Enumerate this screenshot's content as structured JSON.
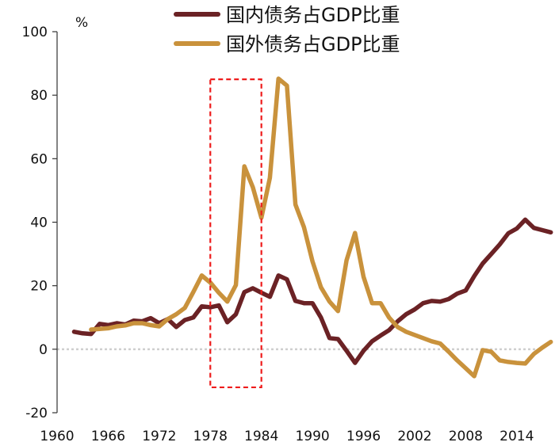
{
  "chart_data": {
    "type": "line",
    "title": "",
    "xlabel": "",
    "ylabel": "",
    "y_unit": "%",
    "xlim": [
      1960,
      2017
    ],
    "ylim": [
      -20,
      100
    ],
    "x_ticks": [
      1960,
      1966,
      1972,
      1978,
      1984,
      1990,
      1996,
      2002,
      2008,
      2014
    ],
    "y_ticks": [
      -20,
      0,
      20,
      40,
      60,
      80,
      100
    ],
    "zero_line": {
      "style": "dotted",
      "color": "#cfcfcf"
    },
    "legend": {
      "placement": "top-right"
    },
    "highlight_box": {
      "x_from": 1978,
      "x_to": 1984,
      "y_from": -12,
      "y_to": 85,
      "color": "#ee1c1c",
      "style": "dashed"
    },
    "series": [
      {
        "name": "国内债务占GDP比重",
        "color": "#6b2225",
        "points": [
          [
            1962,
            5.5
          ],
          [
            1963,
            5
          ],
          [
            1964,
            4.8
          ],
          [
            1965,
            8
          ],
          [
            1966,
            7.6
          ],
          [
            1967,
            8.2
          ],
          [
            1968,
            7.8
          ],
          [
            1969,
            9
          ],
          [
            1970,
            8.8
          ],
          [
            1971,
            9.8
          ],
          [
            1972,
            8.2
          ],
          [
            1973,
            9.5
          ],
          [
            1974,
            7
          ],
          [
            1975,
            9.2
          ],
          [
            1976,
            10
          ],
          [
            1977,
            13.5
          ],
          [
            1978,
            13.2
          ],
          [
            1979,
            13.8
          ],
          [
            1980,
            8.5
          ],
          [
            1981,
            11
          ],
          [
            1982,
            18
          ],
          [
            1983,
            19.2
          ],
          [
            1984,
            17.8
          ],
          [
            1985,
            16.5
          ],
          [
            1986,
            23.2
          ],
          [
            1987,
            22
          ],
          [
            1988,
            15.2
          ],
          [
            1989,
            14.5
          ],
          [
            1990,
            14.5
          ],
          [
            1991,
            10
          ],
          [
            1992,
            3.5
          ],
          [
            1993,
            3.2
          ],
          [
            1994,
            -0.5
          ],
          [
            1995,
            -4.3
          ],
          [
            1996,
            -0.5
          ],
          [
            1997,
            2.5
          ],
          [
            1998,
            4.3
          ],
          [
            1999,
            6
          ],
          [
            2000,
            8.8
          ],
          [
            2001,
            11
          ],
          [
            2002,
            12.5
          ],
          [
            2003,
            14.5
          ],
          [
            2004,
            15.2
          ],
          [
            2005,
            15
          ],
          [
            2006,
            15.8
          ],
          [
            2007,
            17.5
          ],
          [
            2008,
            18.5
          ],
          [
            2009,
            23
          ],
          [
            2010,
            27
          ],
          [
            2011,
            30
          ],
          [
            2012,
            33
          ],
          [
            2013,
            36.5
          ],
          [
            2014,
            38
          ],
          [
            2015,
            40.8
          ],
          [
            2016,
            38.2
          ],
          [
            2017,
            37.5
          ],
          [
            2018,
            36.8
          ]
        ]
      },
      {
        "name": "国外债务占GDP比重",
        "color": "#c9923c",
        "points": [
          [
            1964,
            6.2
          ],
          [
            1965,
            6.4
          ],
          [
            1966,
            6.6
          ],
          [
            1967,
            7.2
          ],
          [
            1968,
            7.5
          ],
          [
            1969,
            8.2
          ],
          [
            1970,
            8.2
          ],
          [
            1971,
            7.6
          ],
          [
            1972,
            7.2
          ],
          [
            1973,
            9.5
          ],
          [
            1974,
            11
          ],
          [
            1975,
            13
          ],
          [
            1976,
            18
          ],
          [
            1977,
            23.2
          ],
          [
            1978,
            21
          ],
          [
            1979,
            17.8
          ],
          [
            1980,
            15
          ],
          [
            1981,
            20.2
          ],
          [
            1982,
            57.6
          ],
          [
            1983,
            51
          ],
          [
            1984,
            41.4
          ],
          [
            1985,
            54
          ],
          [
            1986,
            85.2
          ],
          [
            1987,
            83
          ],
          [
            1988,
            45.6
          ],
          [
            1989,
            38.4
          ],
          [
            1990,
            27.7
          ],
          [
            1991,
            19.5
          ],
          [
            1992,
            15
          ],
          [
            1993,
            12
          ],
          [
            1994,
            28
          ],
          [
            1995,
            36.6
          ],
          [
            1996,
            22.8
          ],
          [
            1997,
            14.5
          ],
          [
            1998,
            14.5
          ],
          [
            1999,
            10
          ],
          [
            2000,
            7
          ],
          [
            2001,
            5.5
          ],
          [
            2002,
            4.5
          ],
          [
            2003,
            3.5
          ],
          [
            2004,
            2.5
          ],
          [
            2005,
            1.8
          ],
          [
            2006,
            -0.8
          ],
          [
            2007,
            -3.5
          ],
          [
            2008,
            -6
          ],
          [
            2009,
            -8.5
          ],
          [
            2010,
            -0.3
          ],
          [
            2011,
            -0.8
          ],
          [
            2012,
            -3.5
          ],
          [
            2013,
            -4
          ],
          [
            2014,
            -4.3
          ],
          [
            2015,
            -4.5
          ],
          [
            2016,
            -1.5
          ],
          [
            2017,
            0.5
          ],
          [
            2018,
            2.3
          ]
        ]
      }
    ]
  }
}
